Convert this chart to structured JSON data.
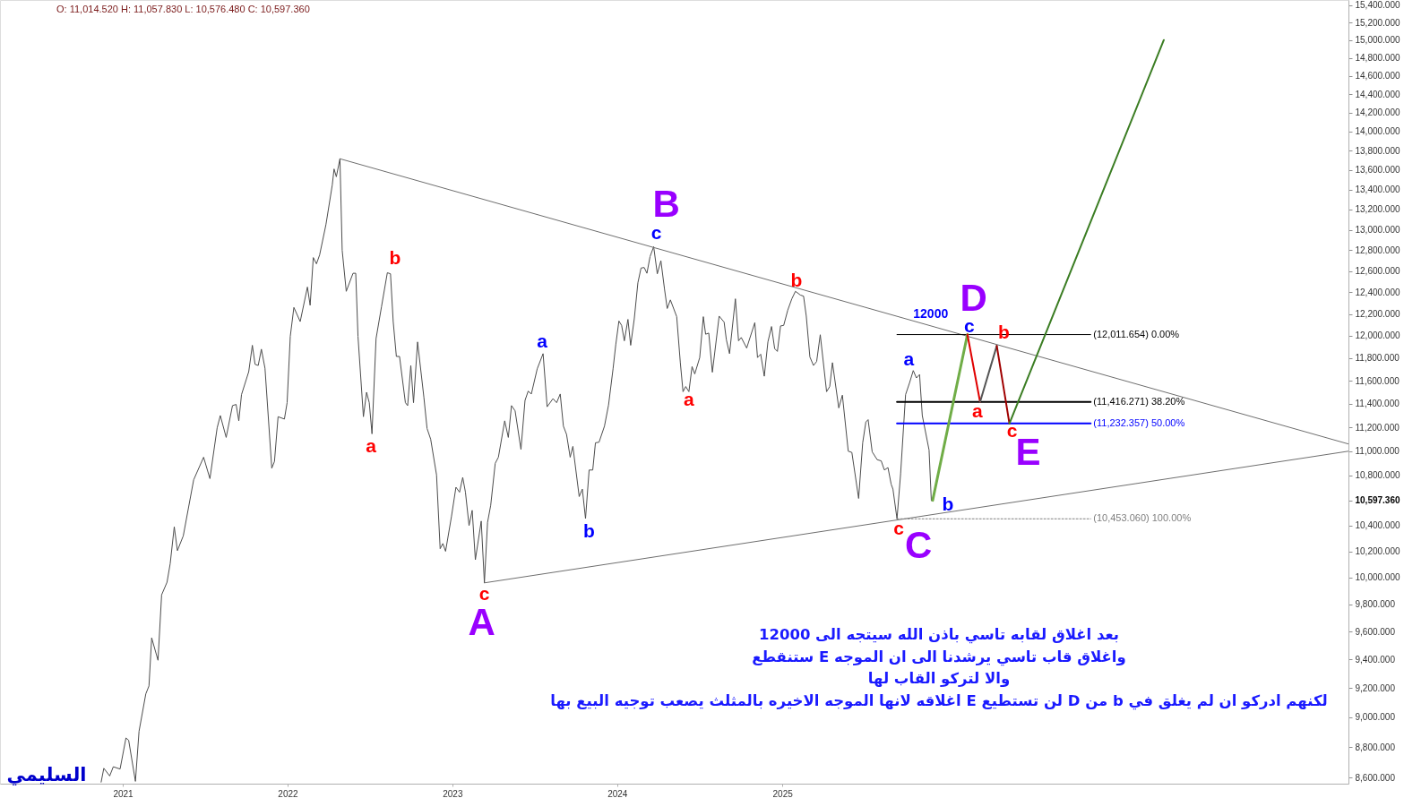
{
  "chart_data": {
    "type": "line",
    "log": "y",
    "grid": false,
    "legend": false,
    "xlim": [
      "2020-04-04",
      "2028-06-08"
    ],
    "ylim": [
      8560,
      15460
    ],
    "xticks": [
      "2021",
      "2022",
      "2023",
      "2024",
      "2025"
    ],
    "yticks": [
      {
        "value": 8600,
        "label": "8,600.000"
      },
      {
        "value": 8800,
        "label": "8,800.000"
      },
      {
        "value": 9000,
        "label": "9,000.000"
      },
      {
        "value": 9200,
        "label": "9,200.000"
      },
      {
        "value": 9400,
        "label": "9,400.000"
      },
      {
        "value": 9600,
        "label": "9,600.000"
      },
      {
        "value": 9800,
        "label": "9,800.000"
      },
      {
        "value": 10000,
        "label": "10,000.000"
      },
      {
        "value": 10200,
        "label": "10,200.000"
      },
      {
        "value": 10400,
        "label": "10,400.000"
      },
      {
        "value": 10597.36,
        "label": "10,597.360"
      },
      {
        "value": 10800,
        "label": "10,800.000"
      },
      {
        "value": 11000,
        "label": "11,000.000"
      },
      {
        "value": 11200,
        "label": "11,200.000"
      },
      {
        "value": 11400,
        "label": "11,400.000"
      },
      {
        "value": 11600,
        "label": "11,600.000"
      },
      {
        "value": 11800,
        "label": "11,800.000"
      },
      {
        "value": 12000,
        "label": "12,000.000"
      },
      {
        "value": 12200,
        "label": "12,200.000"
      },
      {
        "value": 12400,
        "label": "12,400.000"
      },
      {
        "value": 12600,
        "label": "12,600.000"
      },
      {
        "value": 12800,
        "label": "12,800.000"
      },
      {
        "value": 13000,
        "label": "13,000.000"
      },
      {
        "value": 13200,
        "label": "13,200.000"
      },
      {
        "value": 13400,
        "label": "13,400.000"
      },
      {
        "value": 13600,
        "label": "13,600.000"
      },
      {
        "value": 13800,
        "label": "13,800.000"
      },
      {
        "value": 14000,
        "label": "14,000.000"
      },
      {
        "value": 14200,
        "label": "14,200.000"
      },
      {
        "value": 14400,
        "label": "14,400.000"
      },
      {
        "value": 14600,
        "label": "14,600.000"
      },
      {
        "value": 14800,
        "label": "14,800.000"
      },
      {
        "value": 15000,
        "label": "15,000.000"
      },
      {
        "value": 15200,
        "label": "15,200.000"
      },
      {
        "value": 15400,
        "label": "15,400.000"
      }
    ],
    "series": [
      {
        "color": "#4d4d4d",
        "x": [
          "2020-11-14",
          "2020-11-20",
          "2020-12-03",
          "2020-12-11",
          "2020-12-26",
          "2021-01-08",
          "2021-01-14",
          "2021-01-29",
          "2021-02-06",
          "2021-02-21",
          "2021-02-28",
          "2021-03-06",
          "2021-03-20",
          "2021-03-28",
          "2021-04-09",
          "2021-04-16",
          "2021-04-25",
          "2021-05-02",
          "2021-05-15",
          "2021-06-07",
          "2021-06-29",
          "2021-07-13",
          "2021-07-29",
          "2021-08-05",
          "2021-08-18",
          "2021-09-01",
          "2021-09-09",
          "2021-09-15",
          "2021-09-21",
          "2021-10-07",
          "2021-10-15",
          "2021-10-21",
          "2021-10-28",
          "2021-11-04",
          "2021-11-12",
          "2021-11-27",
          "2021-12-03",
          "2021-12-11",
          "2021-12-25",
          "2021-12-31",
          "2022-01-07",
          "2022-01-15",
          "2022-01-29",
          "2022-02-14",
          "2022-02-20",
          "2022-02-27",
          "2022-03-06",
          "2022-03-13",
          "2022-03-27",
          "2022-04-10",
          "2022-04-14",
          "2022-04-19",
          "2022-04-27",
          "2022-05-02",
          "2022-05-11",
          "2022-05-26",
          "2022-06-01",
          "2022-06-06",
          "2022-06-18",
          "2022-06-25",
          "2022-07-01",
          "2022-07-07",
          "2022-07-16",
          "2022-07-28",
          "2022-08-10",
          "2022-08-17",
          "2022-08-23",
          "2022-08-30",
          "2022-09-06",
          "2022-09-19",
          "2022-09-24",
          "2022-10-01",
          "2022-10-07",
          "2022-10-16",
          "2022-10-30",
          "2022-11-06",
          "2022-11-14",
          "2022-11-27",
          "2022-12-05",
          "2022-12-11",
          "2022-12-17",
          "2022-12-30",
          "2023-01-09",
          "2023-01-17",
          "2023-01-24",
          "2023-01-30",
          "2023-02-07",
          "2023-02-14",
          "2023-02-21",
          "2023-03-06",
          "2023-03-13",
          "2023-03-20",
          "2023-03-27",
          "2023-04-06",
          "2023-04-13",
          "2023-04-27",
          "2023-05-05",
          "2023-05-12",
          "2023-05-20",
          "2023-06-02",
          "2023-06-11",
          "2023-06-18",
          "2023-06-25",
          "2023-07-08",
          "2023-07-21",
          "2023-07-30",
          "2023-08-12",
          "2023-08-20",
          "2023-08-28",
          "2023-09-04",
          "2023-09-11",
          "2023-09-19",
          "2023-09-25",
          "2023-10-09",
          "2023-10-16",
          "2023-10-23",
          "2023-10-31",
          "2023-11-08",
          "2023-11-14",
          "2023-11-22",
          "2023-12-04",
          "2023-12-13",
          "2023-12-23",
          "2023-12-29",
          "2024-01-05",
          "2024-01-11",
          "2024-01-17",
          "2024-01-25",
          "2024-01-31",
          "2024-02-08",
          "2024-02-16",
          "2024-02-23",
          "2024-03-01",
          "2024-03-07",
          "2024-03-14",
          "2024-03-22",
          "2024-03-30",
          "2024-04-07",
          "2024-04-15",
          "2024-04-21",
          "2024-04-28",
          "2024-05-12",
          "2024-05-20",
          "2024-05-26",
          "2024-06-01",
          "2024-06-08",
          "2024-06-15",
          "2024-06-21",
          "2024-07-02",
          "2024-07-10",
          "2024-07-15",
          "2024-07-22",
          "2024-07-30",
          "2024-08-14",
          "2024-08-25",
          "2024-08-30",
          "2024-09-06",
          "2024-09-19",
          "2024-09-26",
          "2024-10-02",
          "2024-10-14",
          "2024-11-01",
          "2024-11-07",
          "2024-11-14",
          "2024-11-22",
          "2024-11-30",
          "2024-12-08",
          "2024-12-15",
          "2024-12-21",
          "2024-12-28",
          "2025-01-04",
          "2025-01-13",
          "2025-01-22",
          "2025-01-30",
          "2025-02-10",
          "2025-02-17",
          "2025-02-23",
          "2025-03-03",
          "2025-03-11",
          "2025-03-18",
          "2025-03-26",
          "2025-04-09",
          "2025-04-16",
          "2025-04-22",
          "2025-05-06",
          "2025-05-14",
          "2025-05-27",
          "2025-06-04",
          "2025-06-19",
          "2025-06-28",
          "2025-07-05",
          "2025-07-10",
          "2025-07-19",
          "2025-07-30",
          "2025-08-08",
          "2025-08-15",
          "2025-08-23",
          "2025-08-30",
          "2025-09-03",
          "2025-09-12",
          "2025-09-20",
          "2025-10-01",
          "2025-10-10",
          "2025-10-18",
          "2025-10-25",
          "2025-11-01",
          "2025-11-07",
          "2025-11-22",
          "2025-11-27"
        ],
        "values": [
          8570,
          8660,
          8610,
          8670,
          8655,
          8860,
          8845,
          8575,
          8905,
          9160,
          9215,
          9555,
          9395,
          9870,
          9965,
          10105,
          10390,
          10205,
          10320,
          10765,
          10950,
          10775,
          11195,
          11300,
          11115,
          11385,
          11395,
          11255,
          11480,
          11680,
          11915,
          11745,
          11735,
          11880,
          11710,
          10860,
          10915,
          11290,
          11270,
          11410,
          11995,
          12260,
          12130,
          12450,
          12280,
          12730,
          12670,
          12755,
          13050,
          13445,
          13610,
          13530,
          13715,
          12800,
          12410,
          12580,
          12580,
          11995,
          11290,
          11500,
          11410,
          11145,
          11975,
          12265,
          12585,
          12575,
          12130,
          11815,
          11815,
          11410,
          11385,
          11735,
          11410,
          11945,
          11455,
          11190,
          11100,
          10805,
          10220,
          10260,
          10200,
          10470,
          10705,
          10665,
          10785,
          10665,
          10400,
          10520,
          10135,
          10435,
          9960,
          10425,
          10560,
          10900,
          10950,
          11255,
          11115,
          11385,
          11340,
          11015,
          11430,
          11510,
          11485,
          11705,
          11840,
          11375,
          11445,
          11410,
          11485,
          11210,
          11140,
          10950,
          11040,
          10630,
          10690,
          10455,
          10845,
          10845,
          11070,
          11075,
          11210,
          11390,
          11705,
          11920,
          12135,
          12095,
          11955,
          12150,
          11915,
          12155,
          12490,
          12630,
          12635,
          12580,
          12740,
          12835,
          12575,
          12700,
          12430,
          12250,
          12330,
          12175,
          11760,
          11505,
          11550,
          11505,
          11725,
          11660,
          11805,
          12175,
          12015,
          12025,
          11675,
          12180,
          12125,
          11965,
          11840,
          12340,
          11955,
          11985,
          11890,
          12120,
          11805,
          11835,
          11640,
          11945,
          12085,
          11885,
          11860,
          12090,
          12095,
          12235,
          12340,
          12410,
          12375,
          12365,
          12180,
          11810,
          11735,
          11770,
          12010,
          11505,
          11550,
          11760,
          11365,
          11475,
          11000,
          10990,
          10615,
          11070,
          11245,
          11265,
          10995,
          10930,
          10920,
          10845,
          10865,
          10730,
          10690,
          10453,
          10815,
          11480,
          11585,
          11690,
          11625,
          11655,
          11300,
          11010,
          10597.36
        ]
      },
      {
        "color": "#6e6e6e",
        "x": [
          "2022-04-27",
          "2028-06-08"
        ],
        "values": [
          13715,
          11060
        ]
      },
      {
        "color": "#6e6e6e",
        "x": [
          "2023-03-13",
          "2028-06-08"
        ],
        "values": [
          9960,
          11000
        ]
      },
      {
        "name": "(12,011.654) 0.00%",
        "color": "#000000",
        "x": [
          "2025-09-12",
          "2026-11-15"
        ],
        "values": [
          12011.654,
          12011.654
        ]
      },
      {
        "name": "(11,416.271) 38.20%",
        "color": "#000000",
        "x": [
          "2025-09-12",
          "2026-11-15"
        ],
        "values": [
          11416.271,
          11416.271
        ]
      },
      {
        "name": "(11,232.357) 50.00%",
        "color": "#0000ff",
        "x": [
          "2025-09-12",
          "2026-11-15"
        ],
        "values": [
          11232.357,
          11232.357
        ]
      },
      {
        "name": "(10,453.060) 100.00%",
        "color": "#808080",
        "line_style": "dotted",
        "x": [
          "2025-09-12",
          "2026-11-15"
        ],
        "values": [
          10453.06,
          10453.06
        ]
      },
      {
        "color": "#70ad47",
        "x": [
          "2025-11-30",
          "2026-02-15"
        ],
        "values": [
          10600,
          12011.654
        ]
      },
      {
        "color": "#e00000",
        "x": [
          "2026-02-15",
          "2026-03-15"
        ],
        "values": [
          12011.654,
          11416.271
        ]
      },
      {
        "color": "#555555",
        "x": [
          "2026-03-15",
          "2026-04-21"
        ],
        "values": [
          11416.271,
          11910
        ]
      },
      {
        "color": "#a00000",
        "x": [
          "2026-04-21",
          "2026-05-19"
        ],
        "values": [
          11910,
          11232.357
        ]
      },
      {
        "color": "#3b7d23",
        "x": [
          "2026-05-19",
          "2027-04-26"
        ],
        "values": [
          11232.357,
          15000
        ]
      }
    ],
    "annotations": [
      "O: 11,014.520 H: 11,057.830 L: 10,576.480 C: 10,597.360",
      {
        "text": "a",
        "x": "2022-07-07",
        "y": 11145
      },
      {
        "text": "b",
        "x": "2022-08-17",
        "y": 12575
      },
      {
        "text": "c",
        "x": "2023-03-13",
        "y": 9960
      },
      {
        "text": "A",
        "x": "2023-03-13",
        "y": 9960
      },
      {
        "text": "a",
        "x": "2023-07-21",
        "y": 11840
      },
      {
        "text": "b",
        "x": "2023-10-23",
        "y": 10455
      },
      {
        "text": "c",
        "x": "2024-03-22",
        "y": 12835
      },
      {
        "text": "B",
        "x": "2024-03-22",
        "y": 12835
      },
      {
        "text": "a",
        "x": "2024-06-08",
        "y": 11505
      },
      {
        "text": "b",
        "x": "2025-01-30",
        "y": 12410
      },
      {
        "text": "c",
        "x": "2025-09-12",
        "y": 10453
      },
      {
        "text": "C",
        "x": "2025-09-12",
        "y": 10453
      },
      {
        "text": "a",
        "x": "2025-10-18",
        "y": 11690
      },
      {
        "text": "b",
        "x": "2025-11-30",
        "y": 10600
      },
      {
        "text": "c",
        "x": "2026-02-15",
        "y": 12011.654
      },
      {
        "text": "D",
        "x": "2026-02-15",
        "y": 12011.654
      },
      {
        "text": "a",
        "x": "2026-03-15",
        "y": 11416.271
      },
      {
        "text": "b",
        "x": "2026-04-21",
        "y": 11910
      },
      {
        "text": "c",
        "x": "2026-05-19",
        "y": 11232.357
      },
      {
        "text": "E",
        "x": "2026-05-19",
        "y": 11232.357
      },
      {
        "text": "12000",
        "x": "2026-02-15",
        "y": 12011.654
      },
      "بعد اغلاق لقابه تاسي باذن الله سيتجه الى 12000",
      "واغلاق قاب تاسي يرشدنا الى ان الموجه E ستنقطع",
      "والا لتركو القاب لها",
      "لكنهم ادركو ان لم يغلق في b من D لن تستطيع E اغلاقه لانها الموجه الاخيره بالمثلث يصعب توجيه البيع بها",
      "السليمي"
    ]
  }
}
